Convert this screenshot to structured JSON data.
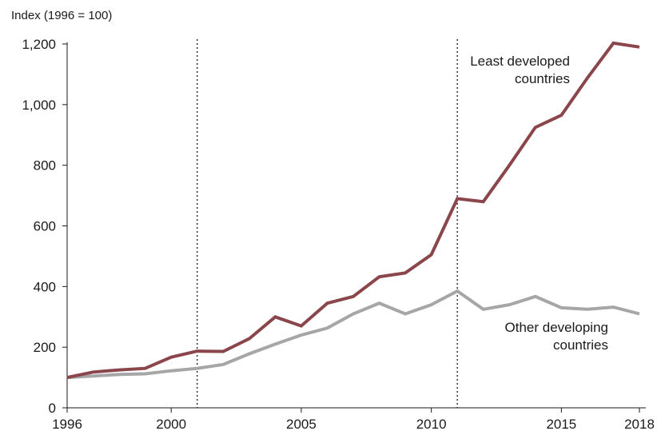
{
  "chart_data": {
    "type": "line",
    "ylabel": "Index (1996 = 100)",
    "ylim": [
      0,
      1200
    ],
    "xlim": [
      1996,
      2018
    ],
    "y_ticks": [
      0,
      200,
      400,
      600,
      800,
      1000,
      1200
    ],
    "y_tick_labels": [
      "0",
      "200",
      "400",
      "600",
      "800",
      "1,000",
      "1,200"
    ],
    "x_ticks": [
      1996,
      2000,
      2005,
      2010,
      2015,
      2018
    ],
    "x_tick_labels": [
      "1996",
      "2000",
      "2005",
      "2010",
      "2015",
      "2018"
    ],
    "reference_lines_x": [
      2001,
      2011
    ],
    "grid": false,
    "x": [
      1996,
      1997,
      1998,
      1999,
      2000,
      2001,
      2002,
      2003,
      2004,
      2005,
      2006,
      2007,
      2008,
      2009,
      2010,
      2011,
      2012,
      2013,
      2014,
      2015,
      2016,
      2017,
      2018
    ],
    "series": [
      {
        "name": "Least developed countries",
        "label_lines": [
          "Least developed",
          "countries"
        ],
        "color": "#8b464b",
        "values": [
          100,
          118,
          125,
          130,
          167,
          187,
          186,
          228,
          300,
          270,
          345,
          367,
          432,
          445,
          505,
          690,
          680,
          800,
          925,
          965,
          1088,
          1203,
          1190
        ]
      },
      {
        "name": "Other developing countries",
        "label_lines": [
          "Other developing",
          "countries"
        ],
        "color": "#a6a6a6",
        "values": [
          100,
          105,
          110,
          112,
          122,
          130,
          143,
          178,
          210,
          240,
          263,
          310,
          345,
          310,
          340,
          385,
          325,
          340,
          367,
          330,
          325,
          332,
          310
        ]
      }
    ]
  }
}
